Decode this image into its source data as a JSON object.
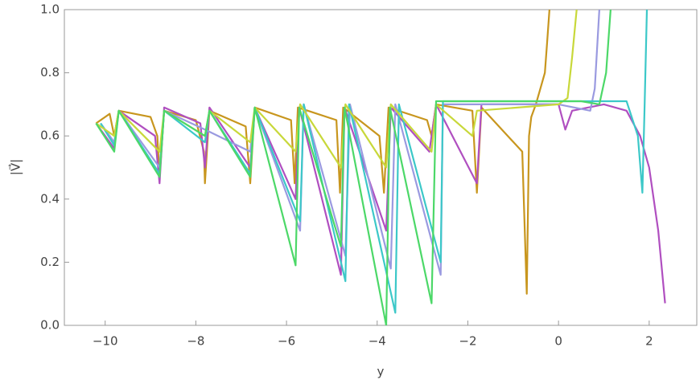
{
  "chart_data": {
    "type": "line",
    "xlabel": "y",
    "ylabel": "|V⃗|",
    "xlim": [
      -10.9,
      3.05
    ],
    "ylim": [
      0,
      1
    ],
    "xticks": [
      {
        "value": -10,
        "label": "−10"
      },
      {
        "value": -8,
        "label": "−8"
      },
      {
        "value": -6,
        "label": "−6"
      },
      {
        "value": -4,
        "label": "−4"
      },
      {
        "value": -2,
        "label": "−2"
      },
      0,
      2
    ],
    "yticks": [
      {
        "value": 0,
        "label": "0.0"
      },
      0.2,
      0.4,
      0.6,
      0.8,
      {
        "value": 1,
        "label": "1.0"
      }
    ],
    "series": [
      {
        "color": "#c8961e",
        "x": [
          -10.2,
          -9.9,
          -9.8,
          -9.7,
          -9.0,
          -8.85,
          -8.8,
          -8.7,
          -8.0,
          -7.82,
          -7.8,
          -7.7,
          -6.9,
          -6.8,
          -6.7,
          -5.9,
          -5.82,
          -5.75,
          -4.9,
          -4.82,
          -4.75,
          -3.95,
          -3.85,
          -3.75,
          -2.9,
          -2.8,
          -2.7,
          -1.9,
          -1.8,
          -1.7,
          -0.8,
          -0.7,
          -0.65,
          -0.6,
          -0.5,
          -0.4,
          -0.3,
          -0.25,
          -0.2
        ],
        "values": [
          0.64,
          0.67,
          0.6,
          0.68,
          0.66,
          0.6,
          0.47,
          0.68,
          0.65,
          0.55,
          0.45,
          0.68,
          0.63,
          0.45,
          0.69,
          0.65,
          0.45,
          0.69,
          0.65,
          0.42,
          0.69,
          0.6,
          0.42,
          0.69,
          0.65,
          0.6,
          0.7,
          0.68,
          0.42,
          0.69,
          0.55,
          0.1,
          0.6,
          0.66,
          0.7,
          0.75,
          0.8,
          0.9,
          1.0
        ]
      },
      {
        "color": "#b04fc0",
        "x": [
          -10.2,
          -9.8,
          -9.7,
          -8.9,
          -8.8,
          -8.7,
          -7.9,
          -7.8,
          -7.7,
          -6.8,
          -6.7,
          -5.8,
          -5.72,
          -4.8,
          -4.72,
          -3.8,
          -3.7,
          -2.85,
          -2.7,
          -1.8,
          -1.7,
          0,
          0.15,
          0.3,
          1.0,
          1.5,
          1.8,
          2.0,
          2.2,
          2.35
        ],
        "values": [
          0.64,
          0.56,
          0.68,
          0.6,
          0.45,
          0.69,
          0.64,
          0.5,
          0.69,
          0.5,
          0.69,
          0.4,
          0.69,
          0.16,
          0.69,
          0.3,
          0.69,
          0.55,
          0.7,
          0.45,
          0.7,
          0.7,
          0.62,
          0.68,
          0.7,
          0.68,
          0.6,
          0.5,
          0.3,
          0.07
        ]
      },
      {
        "color": "#9a9ae0",
        "x": [
          -10.1,
          -9.8,
          -9.7,
          -8.8,
          -8.7,
          -7.8,
          -6.8,
          -6.7,
          -5.7,
          -5.62,
          -4.7,
          -4.6,
          -3.7,
          -3.6,
          -2.6,
          -2.55,
          0,
          0.7,
          0.8,
          0.9
        ],
        "values": [
          0.64,
          0.58,
          0.68,
          0.5,
          0.68,
          0.62,
          0.55,
          0.69,
          0.3,
          0.7,
          0.22,
          0.7,
          0.18,
          0.7,
          0.16,
          0.7,
          0.7,
          0.68,
          0.75,
          1.0
        ]
      },
      {
        "color": "#3cc8c8",
        "x": [
          -10.1,
          -9.8,
          -9.7,
          -8.8,
          -8.7,
          -7.8,
          -7.7,
          -6.8,
          -6.7,
          -5.7,
          -5.62,
          -4.7,
          -4.62,
          -3.6,
          -3.52,
          -2.6,
          -2.55,
          1.5,
          1.75,
          1.85,
          1.9,
          1.95
        ],
        "values": [
          0.64,
          0.57,
          0.68,
          0.48,
          0.68,
          0.58,
          0.68,
          0.48,
          0.69,
          0.33,
          0.7,
          0.14,
          0.7,
          0.04,
          0.7,
          0.2,
          0.71,
          0.71,
          0.6,
          0.42,
          0.7,
          1.0
        ]
      },
      {
        "color": "#c8d83a",
        "x": [
          -10.2,
          -9.8,
          -9.7,
          -8.8,
          -8.7,
          -7.8,
          -7.7,
          -6.8,
          -6.7,
          -5.8,
          -5.7,
          -4.8,
          -4.7,
          -3.8,
          -3.7,
          -2.8,
          -2.7,
          -1.9,
          -1.8,
          0,
          0.2,
          0.3,
          0.4
        ],
        "values": [
          0.64,
          0.6,
          0.68,
          0.55,
          0.68,
          0.6,
          0.68,
          0.58,
          0.69,
          0.55,
          0.7,
          0.5,
          0.7,
          0.5,
          0.7,
          0.55,
          0.7,
          0.6,
          0.68,
          0.7,
          0.72,
          0.85,
          1.0
        ]
      },
      {
        "color": "#4cd868",
        "x": [
          -10.2,
          -9.8,
          -9.7,
          -8.8,
          -8.7,
          -7.8,
          -7.7,
          -6.8,
          -6.7,
          -5.8,
          -5.72,
          -4.8,
          -4.72,
          -3.8,
          -3.72,
          -2.8,
          -2.7,
          -1.0,
          0.5,
          0.9,
          1.05,
          1.15
        ],
        "values": [
          0.64,
          0.55,
          0.68,
          0.47,
          0.68,
          0.6,
          0.68,
          0.47,
          0.69,
          0.19,
          0.69,
          0.25,
          0.69,
          0.0,
          0.69,
          0.07,
          0.71,
          0.71,
          0.71,
          0.7,
          0.8,
          1.0
        ]
      }
    ]
  }
}
